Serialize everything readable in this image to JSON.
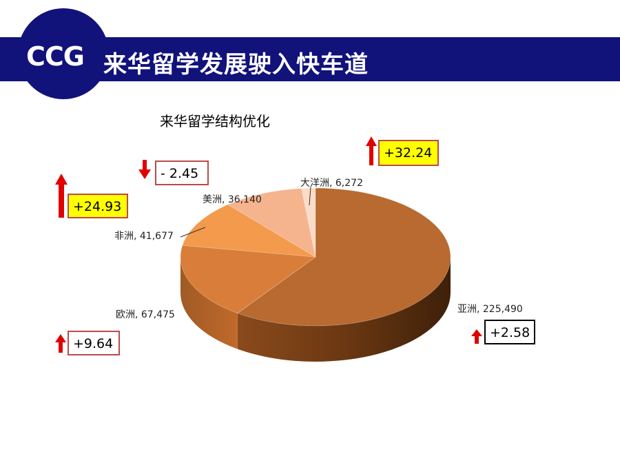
{
  "header": {
    "logo": "CCG",
    "title": "来华留学发展驶入快车道",
    "brand_color": "#11127a"
  },
  "chart_data": {
    "type": "pie",
    "title": "来华留学结构优化",
    "slices": [
      {
        "label": "亚洲",
        "value": 225490,
        "value_text": "225,490",
        "change": "+2.58",
        "direction": "up",
        "color": "#b96a30"
      },
      {
        "label": "欧洲",
        "value": 67475,
        "value_text": "67,475",
        "change": "+9.64",
        "direction": "up",
        "color": "#d97e3a"
      },
      {
        "label": "非洲",
        "value": 41677,
        "value_text": "41,677",
        "change": "+24.93",
        "direction": "up",
        "color": "#f39a4c"
      },
      {
        "label": "美洲",
        "value": 36140,
        "value_text": "36,140",
        "change": "- 2.45",
        "direction": "down",
        "color": "#f5b48e"
      },
      {
        "label": "大洋洲",
        "value": 6272,
        "value_text": "6,272",
        "change": "+32.24",
        "direction": "up",
        "color": "#fadcc8"
      }
    ]
  }
}
